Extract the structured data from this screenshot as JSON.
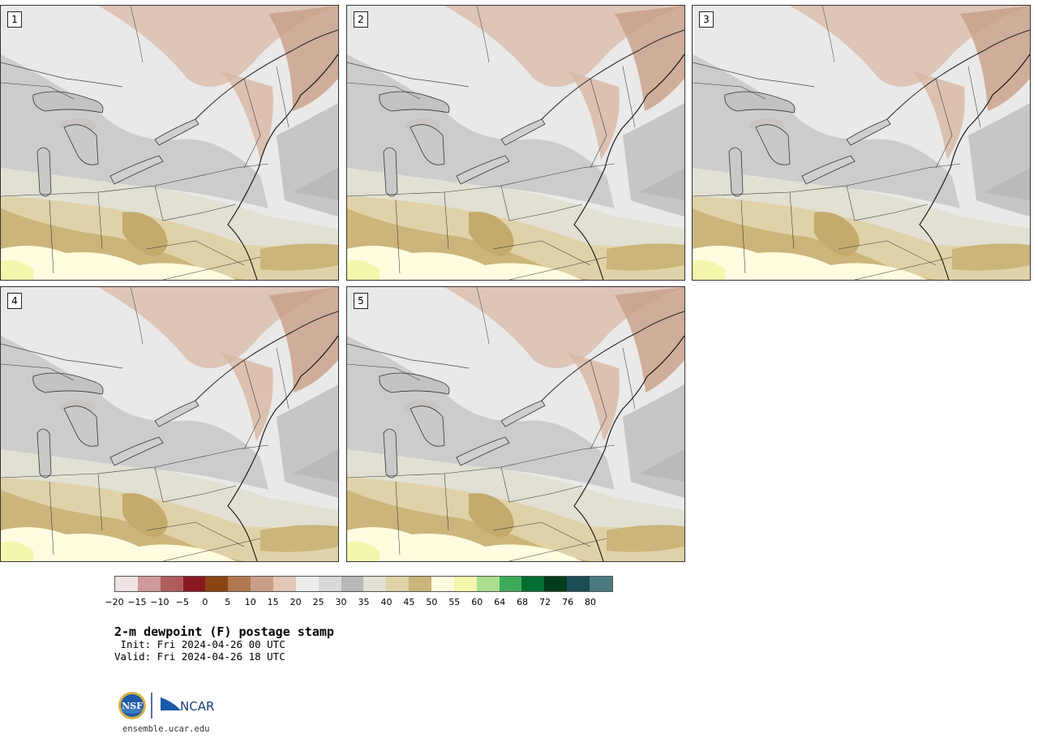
{
  "panels": [
    {
      "label": "1"
    },
    {
      "label": "2"
    },
    {
      "label": "3"
    },
    {
      "label": "4"
    },
    {
      "label": "5"
    }
  ],
  "colorbar": {
    "colors": [
      "#efe4e4",
      "#cf9a9a",
      "#b05c5c",
      "#8a1820",
      "#8b4513",
      "#b07850",
      "#c89f86",
      "#e2c6b6",
      "#ececec",
      "#d9d9d9",
      "#b8b8b8",
      "#e1e0d3",
      "#e0d2a8",
      "#cbb57a",
      "#fffce0",
      "#f3f7ab",
      "#aade8f",
      "#3daa5c",
      "#006d31",
      "#003d1b",
      "#1c4d57",
      "#4c7a80"
    ],
    "ticks": [
      "−20",
      "−15",
      "−10",
      "−5",
      "0",
      "5",
      "10",
      "15",
      "20",
      "25",
      "30",
      "35",
      "40",
      "45",
      "50",
      "55",
      "60",
      "64",
      "68",
      "72",
      "76",
      "80"
    ]
  },
  "title": "2-m dewpoint (F) postage stamp",
  "init": " Init: Fri 2024-04-26 00 UTC",
  "valid": "Valid: Fri 2024-04-26 18 UTC",
  "logos": {
    "nsf": "NSF",
    "ncar": "NCAR"
  },
  "url": "ensemble.ucar.edu"
}
